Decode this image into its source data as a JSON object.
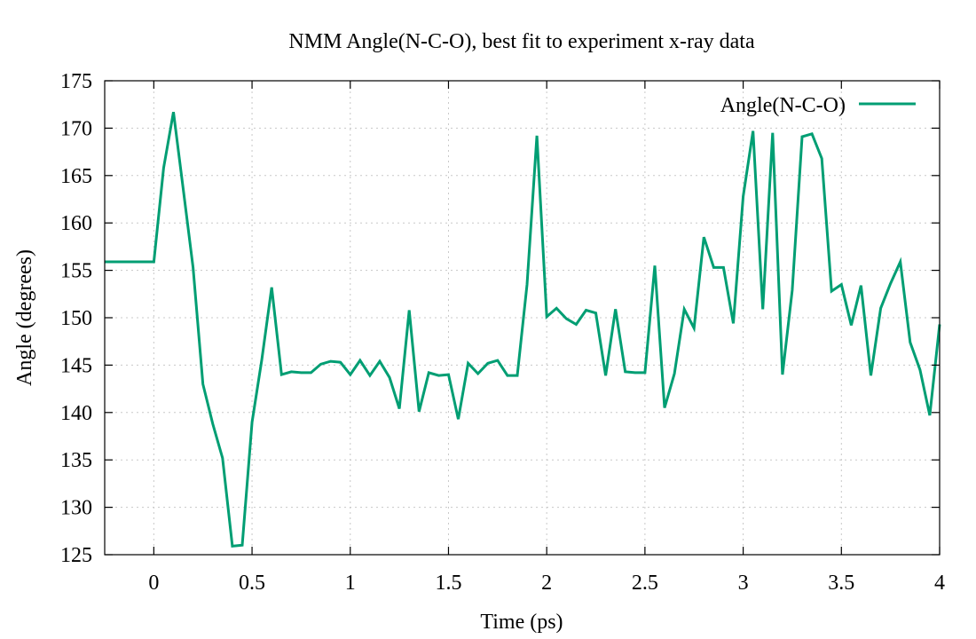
{
  "chart_data": {
    "type": "line",
    "title": "NMM Angle(N-C-O), best fit to experiment x-ray data",
    "xlabel": "Time (ps)",
    "ylabel": "Angle (degrees)",
    "xlim": [
      -0.25,
      4
    ],
    "ylim": [
      125,
      175
    ],
    "xticks": [
      0,
      0.5,
      1,
      1.5,
      2,
      2.5,
      3,
      3.5,
      4
    ],
    "xtick_labels": [
      "0",
      "0.5",
      "1",
      "1.5",
      "2",
      "2.5",
      "3",
      "3.5",
      "4"
    ],
    "yticks": [
      125,
      130,
      135,
      140,
      145,
      150,
      155,
      160,
      165,
      170,
      175
    ],
    "ytick_labels": [
      "125",
      "130",
      "135",
      "140",
      "145",
      "150",
      "155",
      "160",
      "165",
      "170",
      "175"
    ],
    "grid": true,
    "legend_position": "top-right",
    "series": [
      {
        "name": "Angle(N-C-O)",
        "color": "#009e73",
        "x": [
          -0.25,
          0,
          0.05,
          0.1,
          0.15,
          0.2,
          0.25,
          0.3,
          0.35,
          0.4,
          0.45,
          0.5,
          0.55,
          0.6,
          0.65,
          0.7,
          0.75,
          0.8,
          0.85,
          0.9,
          0.95,
          1,
          1.05,
          1.1,
          1.15,
          1.2,
          1.25,
          1.3,
          1.35,
          1.4,
          1.45,
          1.5,
          1.55,
          1.6,
          1.65,
          1.7,
          1.75,
          1.8,
          1.85,
          1.9,
          1.95,
          2,
          2.05,
          2.1,
          2.15,
          2.2,
          2.25,
          2.3,
          2.35,
          2.4,
          2.45,
          2.5,
          2.55,
          2.6,
          2.65,
          2.7,
          2.75,
          2.8,
          2.85,
          2.9,
          2.95,
          3,
          3.05,
          3.1,
          3.15,
          3.2,
          3.25,
          3.3,
          3.35,
          3.4,
          3.45,
          3.5,
          3.55,
          3.6,
          3.65,
          3.7,
          3.75,
          3.8,
          3.85,
          3.9,
          3.95,
          4
        ],
        "y": [
          155.9,
          155.9,
          165.8,
          171.7,
          163.5,
          155.3,
          143.0,
          138.8,
          135.2,
          125.9,
          126.0,
          139.0,
          145.6,
          153.2,
          144.0,
          144.3,
          144.2,
          144.2,
          145.1,
          145.4,
          145.3,
          144.0,
          145.5,
          143.9,
          145.4,
          143.7,
          140.4,
          150.8,
          140.1,
          144.2,
          143.9,
          144.0,
          139.3,
          145.2,
          144.1,
          145.2,
          145.5,
          143.9,
          143.9,
          153.5,
          169.2,
          150.1,
          151.0,
          149.9,
          149.3,
          150.8,
          150.5,
          143.9,
          150.9,
          144.3,
          144.2,
          144.2,
          155.5,
          140.5,
          144.1,
          150.9,
          148.9,
          158.5,
          155.3,
          155.3,
          149.4,
          162.8,
          169.7,
          150.9,
          169.5,
          144.0,
          152.9,
          169.1,
          169.4,
          166.8,
          152.8,
          153.5,
          149.2,
          153.4,
          143.9,
          151.0,
          153.6,
          155.9,
          147.4,
          144.5,
          139.7,
          149.3
        ]
      }
    ]
  }
}
